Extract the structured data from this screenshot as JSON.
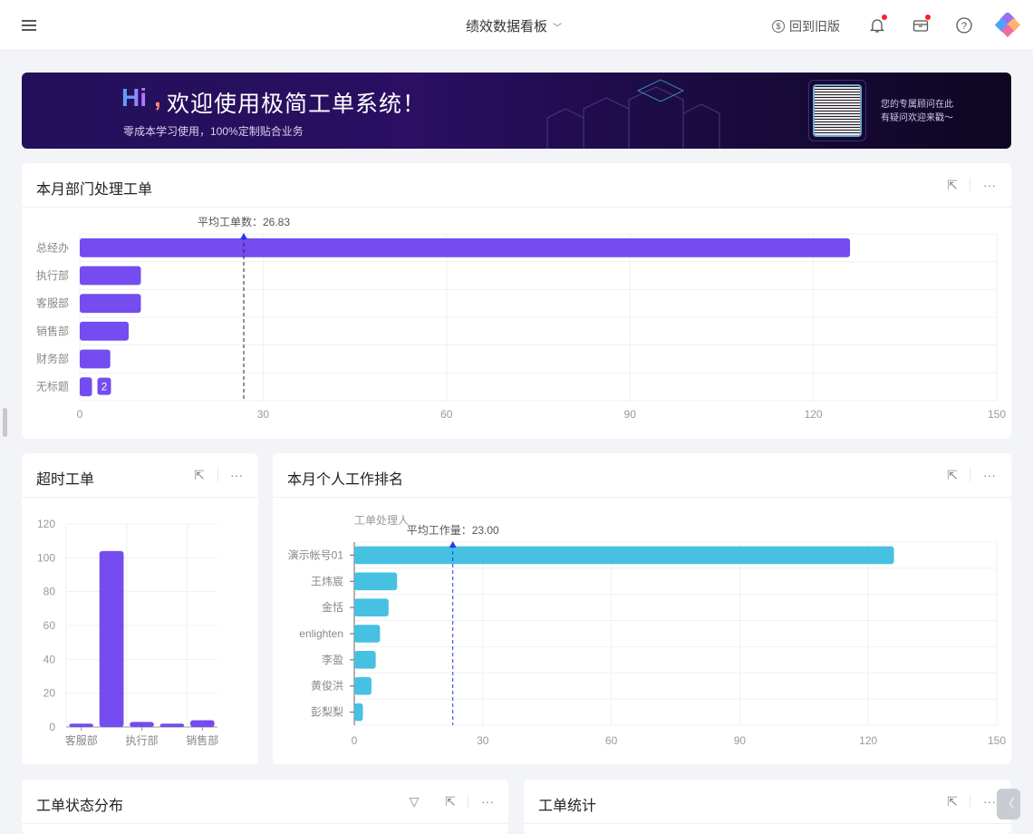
{
  "header": {
    "title": "绩效数据看板",
    "old_version": "回到旧版",
    "icons": [
      "menu-icon",
      "bell-icon",
      "inbox-icon",
      "help-icon",
      "app-logo"
    ]
  },
  "banner": {
    "hi": "Hi",
    "comma": ",",
    "headline": "欢迎使用极简工单系统！",
    "subtitle": "零成本学习使用，100%定制贴合业务",
    "consult_line1": "您的专属顾问在此",
    "consult_line2": "有疑问欢迎来戳～"
  },
  "colors": {
    "purple": "#744cef",
    "cyan": "#46c1e2",
    "avg_line": "#1f3ce8"
  },
  "cards": {
    "dept": {
      "title": "本月部门处理工单"
    },
    "overtime": {
      "title": "超时工单"
    },
    "personal": {
      "title": "本月个人工作排名"
    },
    "status": {
      "title": "工单状态分布"
    },
    "stats": {
      "title": "工单统计"
    }
  },
  "chart_data": [
    {
      "type": "bar",
      "orientation": "horizontal",
      "categories": [
        "总经办",
        "执行部",
        "客服部",
        "销售部",
        "财务部",
        "无标题"
      ],
      "values": [
        126,
        10,
        10,
        8,
        5,
        2
      ],
      "xlim": [
        0,
        150
      ],
      "xticks": [
        "0",
        "30",
        "60",
        "90",
        "120",
        "150"
      ],
      "average": 26.83,
      "average_label": "平均工单数：26.83",
      "data_label": {
        "category": "无标题",
        "text": "2"
      },
      "grid": true,
      "color": "#744cef"
    },
    {
      "type": "bar",
      "orientation": "vertical",
      "categories": [
        "客服部",
        "",
        "执行部",
        "",
        "销售部"
      ],
      "values": [
        2,
        104,
        3,
        2,
        4
      ],
      "ylim": [
        0,
        120
      ],
      "yticks": [
        "0",
        "20",
        "40",
        "60",
        "80",
        "100",
        "120"
      ],
      "grid": true,
      "color": "#744cef"
    },
    {
      "type": "bar",
      "orientation": "horizontal",
      "ylabel": "工单处理人",
      "categories": [
        "演示帐号01",
        "王炜宸",
        "金恬",
        "enlighten",
        "李盈",
        "黄俊洪",
        "彭梨梨"
      ],
      "values": [
        126,
        10,
        8,
        6,
        5,
        4,
        2
      ],
      "xlim": [
        0,
        150
      ],
      "xticks": [
        "0",
        "30",
        "60",
        "90",
        "120",
        "150"
      ],
      "average": 23.0,
      "average_label": "平均工作量：23.00",
      "grid": true,
      "color": "#46c1e2"
    }
  ]
}
